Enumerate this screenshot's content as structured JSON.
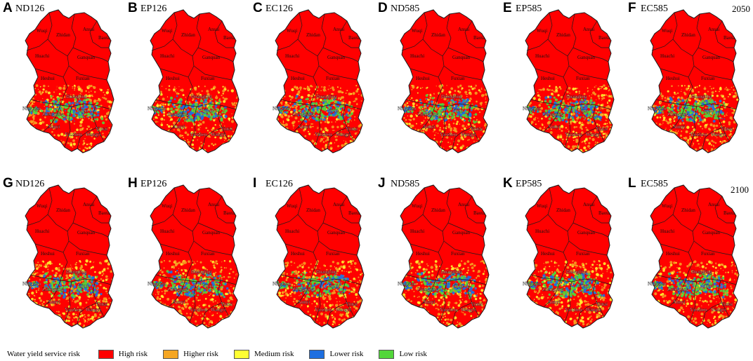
{
  "rows": [
    {
      "year": "2050",
      "panels": [
        {
          "letter": "A",
          "scenario": "ND126"
        },
        {
          "letter": "B",
          "scenario": "EP126"
        },
        {
          "letter": "C",
          "scenario": "EC126"
        },
        {
          "letter": "D",
          "scenario": "ND585"
        },
        {
          "letter": "E",
          "scenario": "EP585"
        },
        {
          "letter": "F",
          "scenario": "EC585"
        }
      ]
    },
    {
      "year": "2100",
      "panels": [
        {
          "letter": "G",
          "scenario": "ND126"
        },
        {
          "letter": "H",
          "scenario": "EP126"
        },
        {
          "letter": "I",
          "scenario": "EC126"
        },
        {
          "letter": "J",
          "scenario": "ND585"
        },
        {
          "letter": "K",
          "scenario": "EP585"
        },
        {
          "letter": "L",
          "scenario": "EC585"
        }
      ]
    }
  ],
  "counties": [
    "Wuqi",
    "Zhidan",
    "Ansai",
    "Baota",
    "Huachi",
    "Ganquan",
    "Heshui",
    "Fuxian",
    "Huangling",
    "Ningxian",
    "Zhengning",
    "Yijun",
    "Xunyi",
    "Yintai",
    "Yaozhou",
    "Wangyi"
  ],
  "legend": {
    "title": "Water yield service risk",
    "items": [
      {
        "label": "High risk",
        "color": "#ff0000"
      },
      {
        "label": "Higher risk",
        "color": "#f5a623"
      },
      {
        "label": "Medium risk",
        "color": "#ffff33"
      },
      {
        "label": "Lower risk",
        "color": "#1e6fe0"
      },
      {
        "label": "Low risk",
        "color": "#52d63a"
      }
    ]
  },
  "colors": {
    "high": "#ff0000",
    "higher": "#f5a623",
    "medium": "#ffff33",
    "lower": "#1e6fe0",
    "low": "#52d63a",
    "boundary": "#1a1a1a"
  }
}
